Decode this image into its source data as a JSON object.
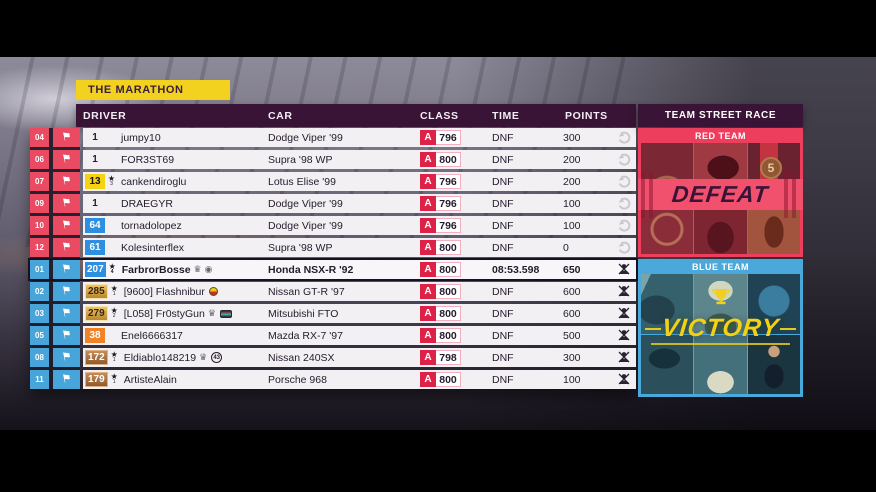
{
  "title": "THE MARATHON",
  "table": {
    "headers": [
      "DRIVER",
      "CAR",
      "CLASS",
      "TIME",
      "POINTS"
    ],
    "rows": [
      {
        "pos": "04",
        "team": "red",
        "badge": {
          "text": "1",
          "style": "none"
        },
        "star": null,
        "name": "jumpy10",
        "icons": [],
        "car": "Dodge Viper '99",
        "cls": "A",
        "pi": "796",
        "time": "DNF",
        "points": "300",
        "end_icon": "replay",
        "player": false
      },
      {
        "pos": "06",
        "team": "red",
        "badge": {
          "text": "1",
          "style": "none"
        },
        "star": null,
        "name": "FOR3ST69",
        "icons": [],
        "car": "Supra '98 WP",
        "cls": "A",
        "pi": "800",
        "time": "DNF",
        "points": "200",
        "end_icon": "replay",
        "player": false
      },
      {
        "pos": "07",
        "team": "red",
        "badge": {
          "text": "13",
          "style": "yellow"
        },
        "star": "3",
        "name": "cankendiroglu",
        "icons": [],
        "car": "Lotus Elise '99",
        "cls": "A",
        "pi": "796",
        "time": "DNF",
        "points": "200",
        "end_icon": "replay",
        "player": false
      },
      {
        "pos": "09",
        "team": "red",
        "badge": {
          "text": "1",
          "style": "none"
        },
        "star": null,
        "name": "DRAEGYR",
        "icons": [],
        "car": "Dodge Viper '99",
        "cls": "A",
        "pi": "796",
        "time": "DNF",
        "points": "100",
        "end_icon": "replay",
        "player": false
      },
      {
        "pos": "10",
        "team": "red",
        "badge": {
          "text": "64",
          "style": "blue"
        },
        "star": null,
        "name": "tornadolopez",
        "icons": [],
        "car": "Dodge Viper '99",
        "cls": "A",
        "pi": "796",
        "time": "DNF",
        "points": "100",
        "end_icon": "replay",
        "player": false
      },
      {
        "pos": "12",
        "team": "red",
        "badge": {
          "text": "61",
          "style": "blue"
        },
        "star": null,
        "name": "Kolesinterflex",
        "icons": [],
        "car": "Supra '98 WP",
        "cls": "A",
        "pi": "800",
        "time": "DNF",
        "points": "0",
        "end_icon": "replay",
        "player": false
      },
      {
        "pos": "01",
        "team": "blue",
        "badge": {
          "text": "207",
          "style": "blue"
        },
        "star": "4",
        "name": "FarbrorBosse",
        "icons": [
          {
            "type": "crown"
          },
          {
            "type": "spiral"
          }
        ],
        "car": "Honda NSX-R '92",
        "cls": "A",
        "pi": "800",
        "time": "08:53.598",
        "points": "650",
        "end_icon": "muted",
        "player": true
      },
      {
        "pos": "02",
        "team": "blue",
        "badge": {
          "text": "285",
          "style": "gold"
        },
        "star": "1",
        "name": "[9600] Flashnibur",
        "icons": [
          {
            "type": "roundel"
          }
        ],
        "car": "Nissan GT-R '97",
        "cls": "A",
        "pi": "800",
        "time": "DNF",
        "points": "600",
        "end_icon": "muted",
        "player": false
      },
      {
        "pos": "03",
        "team": "blue",
        "badge": {
          "text": "279",
          "style": "gold"
        },
        "star": "2",
        "name": "[L058] Fr0styGun",
        "icons": [
          {
            "type": "crown"
          },
          {
            "type": "cassette"
          }
        ],
        "car": "Mitsubishi FTO",
        "cls": "A",
        "pi": "800",
        "time": "DNF",
        "points": "600",
        "end_icon": "muted",
        "player": false
      },
      {
        "pos": "05",
        "team": "blue",
        "badge": {
          "text": "38",
          "style": "orange"
        },
        "star": null,
        "name": "Enel6666317",
        "icons": [],
        "car": "Mazda RX-7 '97",
        "cls": "A",
        "pi": "800",
        "time": "DNF",
        "points": "500",
        "end_icon": "muted",
        "player": false
      },
      {
        "pos": "08",
        "team": "blue",
        "badge": {
          "text": "172",
          "style": "copper"
        },
        "star": "1",
        "name": "Eldiablo148219",
        "icons": [
          {
            "type": "crown"
          },
          {
            "type": "circle43",
            "text": "43"
          }
        ],
        "car": "Nissan 240SX",
        "cls": "A",
        "pi": "798",
        "time": "DNF",
        "points": "300",
        "end_icon": "muted",
        "player": false
      },
      {
        "pos": "11",
        "team": "blue",
        "badge": {
          "text": "179",
          "style": "copper"
        },
        "star": "1",
        "name": "ArtisteAlain",
        "icons": [],
        "car": "Porsche 968",
        "cls": "A",
        "pi": "800",
        "time": "DNF",
        "points": "100",
        "end_icon": "muted",
        "player": false
      }
    ]
  },
  "panel": {
    "title": "TEAM STREET RACE",
    "red": {
      "label": "RED TEAM",
      "result": "DEFEAT",
      "badge": "5"
    },
    "blue": {
      "label": "BLUE TEAM",
      "result": "VICTORY"
    }
  },
  "colors": {
    "accent_yellow": "#f2d21f",
    "header_purple": "#3a1437",
    "red_team": "#ea4a62",
    "blue_team": "#48a5d9",
    "class_a": "#dc2247",
    "defeat_banner": "#f2516e",
    "victory_text": "#f4d016"
  }
}
